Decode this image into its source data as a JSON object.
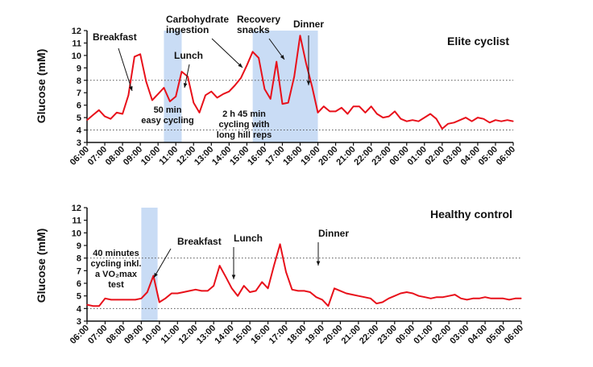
{
  "chart_data": [
    {
      "type": "line",
      "title": "Elite cyclist",
      "ylabel": "Glucose (mM)",
      "ylim": [
        3,
        12
      ],
      "yticks": [
        3,
        4,
        5,
        6,
        7,
        8,
        9,
        10,
        11,
        12
      ],
      "xticks": [
        "06:00",
        "07:00",
        "08:00",
        "09:00",
        "10:00",
        "11:00",
        "12:00",
        "13:00",
        "14:00",
        "15:00",
        "16:00",
        "17:00",
        "18:00",
        "19:00",
        "20:00",
        "21:00",
        "22:00",
        "23:00",
        "00:00",
        "01:00",
        "02:00",
        "03:00",
        "04:00",
        "05:00",
        "06:00"
      ],
      "reference_lines": [
        4,
        8
      ],
      "line_color": "#e8101a",
      "band_color": "#c9dcf5",
      "x_hours": [
        0,
        0.33,
        0.67,
        1,
        1.33,
        1.67,
        2,
        2.33,
        2.67,
        3,
        3.33,
        3.67,
        4,
        4.33,
        4.67,
        5,
        5.33,
        5.67,
        6,
        6.33,
        6.67,
        7,
        7.33,
        7.67,
        8,
        8.33,
        8.67,
        9,
        9.33,
        9.67,
        10,
        10.33,
        10.67,
        11,
        11.33,
        11.67,
        12,
        12.33,
        12.67,
        13,
        13.33,
        13.67,
        14,
        14.33,
        14.67,
        15,
        15.33,
        15.67,
        16,
        16.33,
        16.67,
        17,
        17.33,
        17.67,
        18,
        18.33,
        18.67,
        19,
        19.33,
        19.67,
        20,
        20.33,
        20.67,
        21,
        21.33,
        21.67,
        22,
        22.33,
        22.67,
        23,
        23.33,
        23.67,
        24
      ],
      "values": [
        4.8,
        5.2,
        5.6,
        5.1,
        4.9,
        5.4,
        5.3,
        6.8,
        9.9,
        10.1,
        7.9,
        6.4,
        6.9,
        7.4,
        6.3,
        6.7,
        8.7,
        8.3,
        6.2,
        5.4,
        6.8,
        7.1,
        6.6,
        6.9,
        7.1,
        7.6,
        8.2,
        9.2,
        10.3,
        9.8,
        7.3,
        6.5,
        9.5,
        6.1,
        6.2,
        8.3,
        11.6,
        9.4,
        7.5,
        5.4,
        5.9,
        5.5,
        5.5,
        5.8,
        5.3,
        5.9,
        5.9,
        5.4,
        5.9,
        5.3,
        5.0,
        5.1,
        5.5,
        4.9,
        4.7,
        4.8,
        4.7,
        5.0,
        5.3,
        4.9,
        4.1,
        4.5,
        4.6,
        4.8,
        5.0,
        4.7,
        5.0,
        4.9,
        4.6,
        4.8,
        4.7,
        4.8,
        4.7
      ],
      "bands": [
        [
          4.33,
          5.33
        ],
        [
          9.33,
          13.0
        ]
      ],
      "annotations": [
        {
          "lines": [
            "Breakfast"
          ]
        },
        {
          "lines": [
            "Lunch"
          ]
        },
        {
          "lines": [
            "Carbohydrate",
            "ingestion"
          ]
        },
        {
          "lines": [
            "Recovery",
            "snacks"
          ]
        },
        {
          "lines": [
            "Dinner"
          ]
        },
        {
          "lines": [
            "50 min",
            "easy cycling"
          ]
        },
        {
          "lines": [
            "2 h 45 min",
            "cycling with",
            "long hill reps"
          ]
        }
      ]
    },
    {
      "type": "line",
      "title": "Healthy control",
      "ylabel": "Glucose (mM)",
      "ylim": [
        3,
        12
      ],
      "yticks": [
        3,
        4,
        5,
        6,
        7,
        8,
        9,
        10,
        11,
        12
      ],
      "xticks": [
        "06:00",
        "07:00",
        "08:00",
        "09:00",
        "10:00",
        "11:00",
        "12:00",
        "13:00",
        "14:00",
        "15:00",
        "16:00",
        "17:00",
        "18:00",
        "19:00",
        "20:00",
        "21:00",
        "22:00",
        "23:00",
        "00:00",
        "01:00",
        "02:00",
        "03:00",
        "04:00",
        "05:00",
        "06:00"
      ],
      "reference_lines": [
        4,
        8
      ],
      "line_color": "#e8101a",
      "band_color": "#c9dcf5",
      "x_hours": [
        0,
        0.33,
        0.67,
        1,
        1.33,
        1.67,
        2,
        2.33,
        2.67,
        3,
        3.33,
        3.67,
        4,
        4.33,
        4.67,
        5,
        5.33,
        5.67,
        6,
        6.33,
        6.67,
        7,
        7.33,
        7.67,
        8,
        8.33,
        8.67,
        9,
        9.33,
        9.67,
        10,
        10.33,
        10.67,
        11,
        11.33,
        11.67,
        12,
        12.33,
        12.67,
        13,
        13.33,
        13.67,
        14,
        14.33,
        14.67,
        15,
        15.33,
        15.67,
        16,
        16.33,
        16.67,
        17,
        17.33,
        17.67,
        18,
        18.33,
        18.67,
        19,
        19.33,
        19.67,
        20,
        20.33,
        20.67,
        21,
        21.33,
        21.67,
        22,
        22.33,
        22.67,
        23,
        23.33,
        23.67,
        24
      ],
      "values": [
        4.3,
        4.2,
        4.2,
        4.8,
        4.7,
        4.7,
        4.7,
        4.7,
        4.7,
        4.8,
        5.3,
        6.6,
        4.5,
        4.8,
        5.2,
        5.2,
        5.3,
        5.4,
        5.5,
        5.4,
        5.4,
        5.8,
        7.4,
        6.5,
        5.6,
        5.0,
        5.8,
        5.3,
        5.4,
        6.1,
        5.6,
        7.4,
        9.1,
        6.9,
        5.5,
        5.4,
        5.4,
        5.3,
        4.9,
        4.7,
        4.2,
        5.6,
        5.4,
        5.2,
        5.1,
        5.0,
        4.9,
        4.8,
        4.4,
        4.5,
        4.8,
        5.0,
        5.2,
        5.3,
        5.2,
        5.0,
        4.9,
        4.8,
        4.9,
        4.9,
        5.0,
        5.1,
        4.8,
        4.7,
        4.8,
        4.8,
        4.9,
        4.8,
        4.8,
        4.8,
        4.7,
        4.8,
        4.8
      ],
      "bands": [
        [
          3.0,
          3.9
        ]
      ],
      "annotations": [
        {
          "lines": [
            "40 minutes",
            "cycling inkl.",
            "a VO₂max",
            "test"
          ]
        },
        {
          "lines": [
            "Breakfast"
          ]
        },
        {
          "lines": [
            "Lunch"
          ]
        },
        {
          "lines": [
            "Dinner"
          ]
        }
      ]
    }
  ]
}
